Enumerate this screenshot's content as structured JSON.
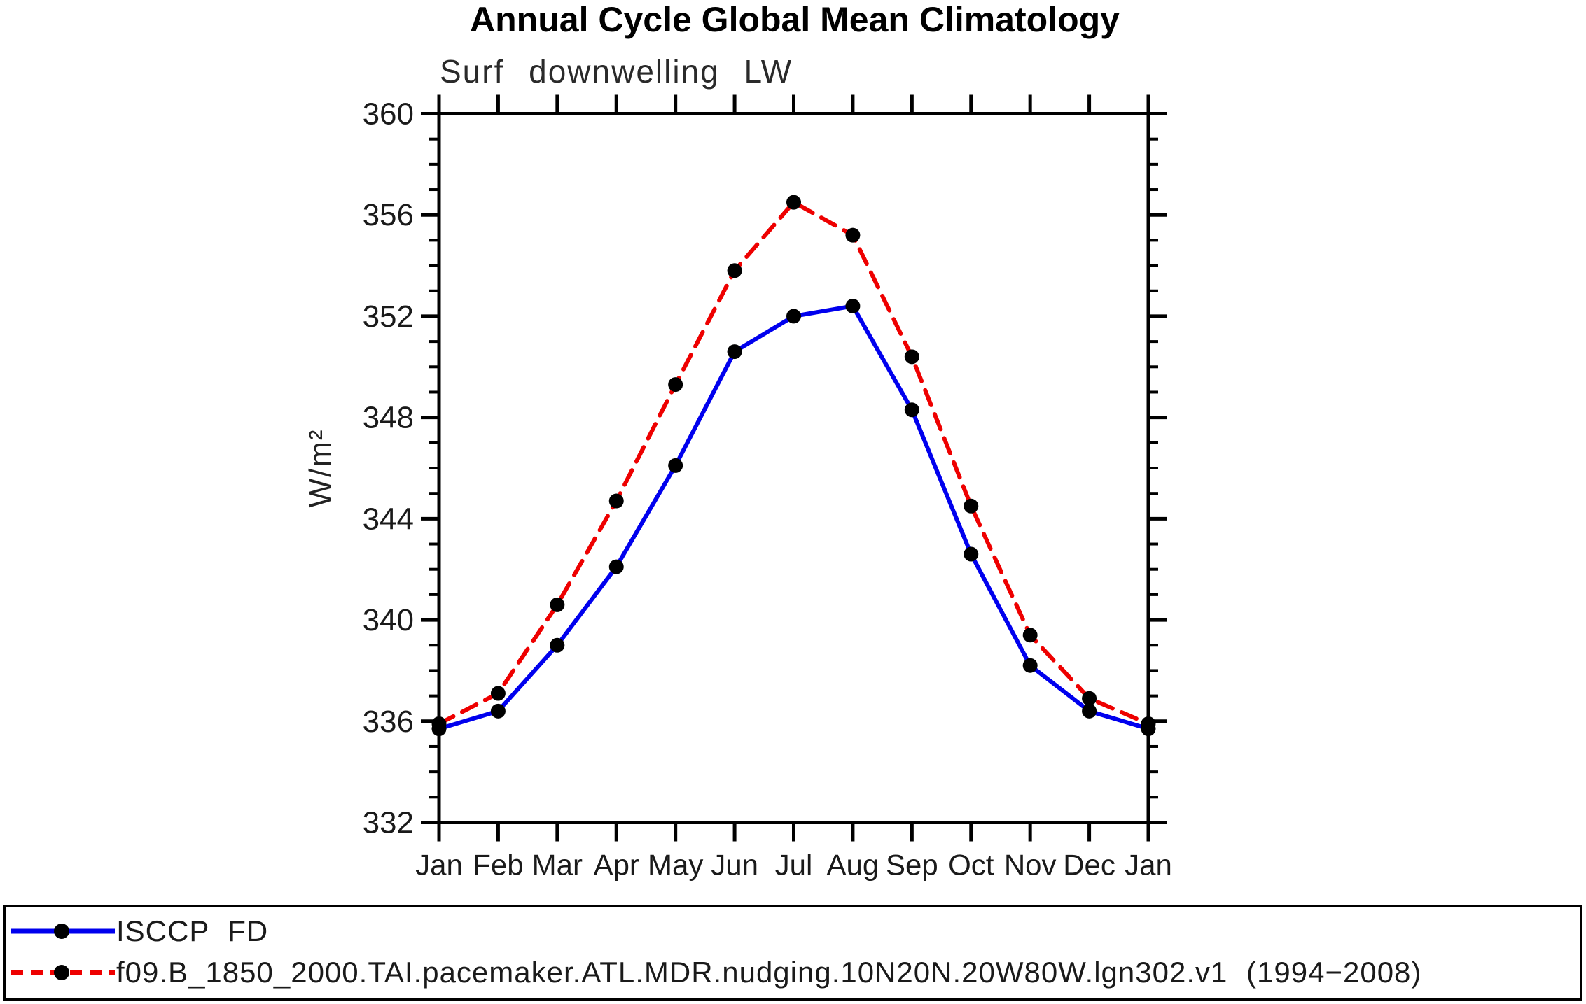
{
  "chart_data": {
    "type": "line",
    "title": "Annual Cycle Global Mean Climatology",
    "subtitle": "Surf downwelling LW",
    "ylabel": "W/m²",
    "xlabel": "",
    "categories": [
      "Jan",
      "Feb",
      "Mar",
      "Apr",
      "May",
      "Jun",
      "Jul",
      "Aug",
      "Sep",
      "Oct",
      "Nov",
      "Dec",
      "Jan"
    ],
    "series": [
      {
        "name": "ISCCP FD",
        "color": "#0000ee",
        "style": "solid",
        "marker": "circle",
        "marker_color": "#000000",
        "values": [
          335.7,
          336.4,
          339.0,
          342.1,
          346.1,
          350.6,
          352.0,
          352.4,
          348.3,
          342.6,
          338.2,
          336.4,
          335.7
        ]
      },
      {
        "name": "f09.B_1850_2000.TAI.pacemaker.ATL.MDR.nudging.10N20N.20W80W.lgn302.v1 (1994−2008)",
        "color": "#ee0000",
        "style": "dashed",
        "marker": "circle",
        "marker_color": "#000000",
        "values": [
          335.9,
          337.1,
          340.6,
          344.7,
          349.3,
          353.8,
          356.5,
          355.2,
          350.4,
          344.5,
          339.4,
          336.9,
          335.9
        ]
      }
    ],
    "ylim": [
      332,
      360
    ],
    "ytick_major": 4,
    "ytick_minor": 1,
    "ytick_labels": [
      "332",
      "336",
      "340",
      "344",
      "348",
      "352",
      "356",
      "360"
    ],
    "grid": false,
    "legend_position": "bottom",
    "axis_color": "#000000"
  }
}
